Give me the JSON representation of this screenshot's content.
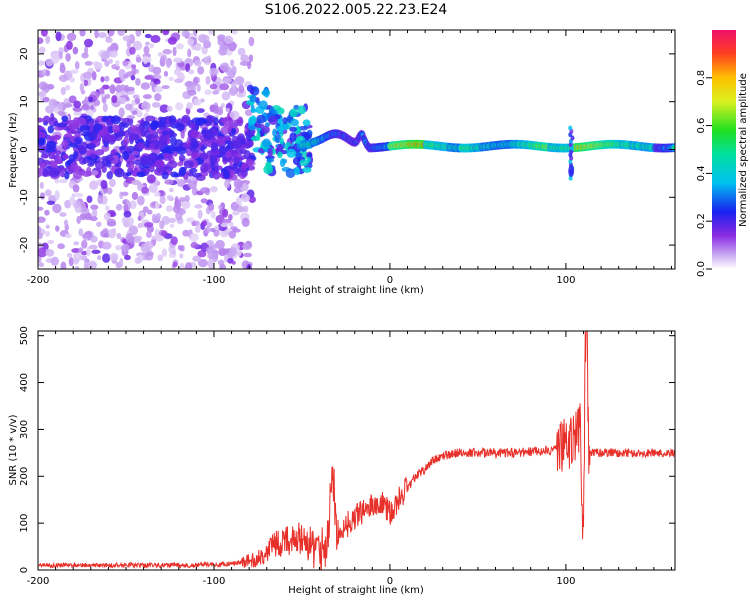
{
  "figure": {
    "title": "S106.2022.005.22.23.E24"
  },
  "chart_data": [
    {
      "type": "heatmap",
      "title": "S106.2022.005.22.23.E24",
      "xlabel": "Height of straight line (km)",
      "ylabel": "Frequency (Hz)",
      "xlim": [
        -200,
        162
      ],
      "ylim": [
        -25,
        25
      ],
      "x_ticks": [
        "-200",
        "-100",
        "0",
        "100"
      ],
      "x_tick_values": [
        -200,
        -100,
        0,
        100
      ],
      "y_ticks": [
        "-20",
        "-10",
        "0",
        "10",
        "20"
      ],
      "y_tick_values": [
        -20,
        -10,
        0,
        10,
        20
      ],
      "grid": false,
      "colorbar": {
        "label": "Normalized spectral amplitude",
        "range": [
          0,
          1
        ],
        "ticks": [
          "0.0",
          "0.2",
          "0.4",
          "0.6",
          "0.8"
        ],
        "tick_values": [
          0,
          0.2,
          0.4,
          0.6,
          0.8
        ],
        "colormap": "rainbow (white, violet, blue, cyan, green, yellow, orange, red)"
      },
      "features": {
        "diffuse_noise_region_km": [
          -200,
          -80
        ],
        "band_center_hz": 0.5,
        "peak_amplitude_km": [
          0,
          120
        ],
        "disturbances_km": [
          -75,
          -20,
          103
        ]
      }
    },
    {
      "type": "line",
      "xlabel": "Height of straight line (km)",
      "ylabel": "SNR (10 * v/v)",
      "xlim": [
        -200,
        162
      ],
      "ylim": [
        0,
        510
      ],
      "x_ticks": [
        "-200",
        "-100",
        "0",
        "100"
      ],
      "x_tick_values": [
        -200,
        -100,
        0,
        100
      ],
      "y_ticks": [
        "0",
        "100",
        "200",
        "300",
        "400",
        "500"
      ],
      "y_tick_values": [
        0,
        100,
        200,
        300,
        400,
        500
      ],
      "grid": false,
      "line_color": "#e8302a",
      "series": [
        {
          "x": [
            -200,
            -180,
            -160,
            -140,
            -120,
            -100,
            -90,
            -80,
            -75,
            -70,
            -65,
            -60,
            -55,
            -50,
            -45,
            -40,
            -35,
            -33,
            -30,
            -25,
            -20,
            -15,
            -10,
            -5,
            0,
            5,
            10,
            15,
            20,
            25,
            30,
            40,
            50,
            60,
            70,
            80,
            90,
            95,
            100,
            105,
            108,
            110,
            111,
            112,
            113,
            115,
            120,
            130,
            140,
            150,
            162
          ],
          "y": [
            10,
            10,
            10,
            10,
            10,
            11,
            14,
            18,
            25,
            40,
            55,
            60,
            70,
            65,
            50,
            45,
            60,
            230,
            80,
            95,
            110,
            125,
            140,
            150,
            120,
            150,
            175,
            200,
            215,
            235,
            245,
            250,
            250,
            250,
            250,
            252,
            255,
            258,
            265,
            275,
            320,
            60,
            480,
            510,
            240,
            250,
            250,
            250,
            250,
            250,
            250
          ]
        }
      ]
    }
  ]
}
